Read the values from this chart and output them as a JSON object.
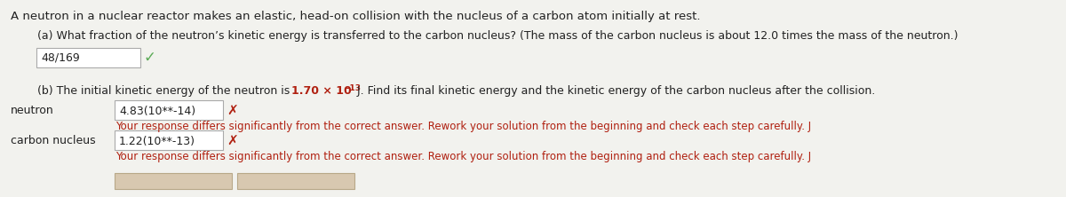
{
  "bg_color": "#f2f2ee",
  "text_color": "#222222",
  "red_color": "#b02010",
  "green_color": "#5aaa55",
  "header": "A neutron in a nuclear reactor makes an elastic, head-on collision with the nucleus of a carbon atom initially at rest.",
  "part_a_label": "(a) What fraction of the neutron’s kinetic energy is transferred to the carbon nucleus? (The mass of the carbon nucleus is about 12.0 times the mass of the neutron.)",
  "answer_a": "48/169",
  "part_b_prefix": "(b) The initial kinetic energy of the neutron is ",
  "part_b_value": "1.70 × 10",
  "part_b_exp": "−13",
  "part_b_end": " J. Find its final kinetic energy and the kinetic energy of the carbon nucleus after the collision.",
  "neutron_label": "neutron",
  "neutron_answer": "4.83(10**-14)",
  "carbon_label": "carbon nucleus",
  "carbon_answer": "1.22(10**-13)",
  "wrong_msg": "Your response differs significantly from the correct answer. Rework your solution from the beginning and check each step carefully. J",
  "box_edgecolor": "#aaaaaa",
  "btn_facecolor": "#d8c8b0",
  "btn_edgecolor": "#b8a888"
}
